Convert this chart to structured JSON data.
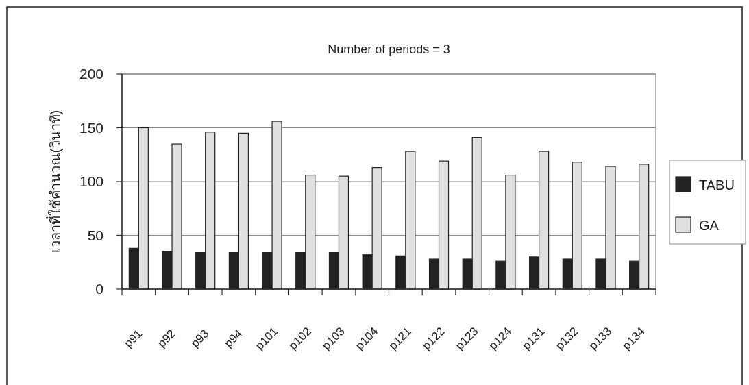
{
  "chart_data": {
    "type": "bar",
    "title": "Number of periods = 3",
    "ylabel": "เวลาที่ใช้คำนวณ(วินาที)",
    "categories": [
      "p91",
      "p92",
      "p93",
      "p94",
      "p101",
      "p102",
      "p103",
      "p104",
      "p121",
      "p122",
      "p123",
      "p124",
      "p131",
      "p132",
      "p133",
      "p134"
    ],
    "series": [
      {
        "name": "TABU",
        "color": "#222222",
        "values": [
          38,
          35,
          34,
          34,
          34,
          34,
          34,
          32,
          31,
          28,
          28,
          26,
          30,
          28,
          28,
          26
        ]
      },
      {
        "name": "GA",
        "color": "#e0e0e0",
        "values": [
          150,
          135,
          146,
          145,
          156,
          106,
          105,
          113,
          128,
          119,
          141,
          106,
          128,
          118,
          114,
          116
        ]
      }
    ],
    "ylim": [
      0,
      200
    ],
    "yticks": [
      0,
      50,
      100,
      150,
      200
    ],
    "grid": "y",
    "legend": "right"
  }
}
